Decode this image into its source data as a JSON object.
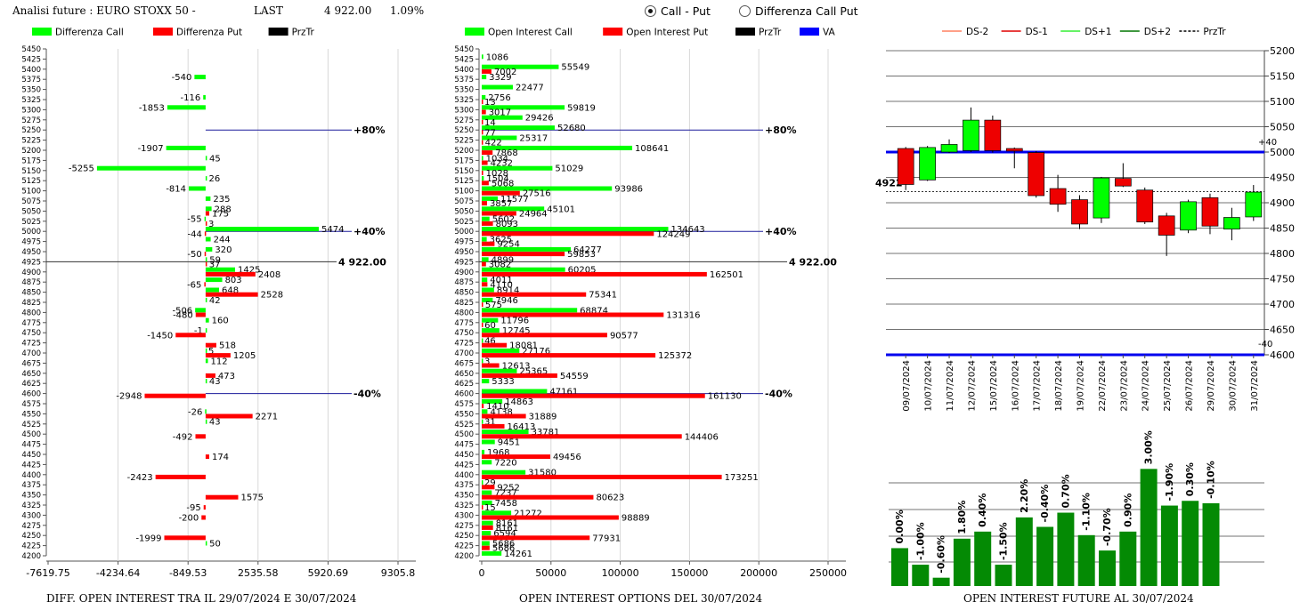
{
  "header": {
    "title": "Analisi future : EURO STOXX 50 -",
    "last_label": "LAST",
    "last_value": "4 922.00",
    "change": "1.09%",
    "radio_call_put": "Call - Put",
    "radio_diff": "Differenza Call Put",
    "radio_selected": "call_put"
  },
  "footers": {
    "left": "DIFF. OPEN INTEREST TRA IL 29/07/2024 E 30/07/2024",
    "middle": "OPEN INTEREST OPTIONS DEL 30/07/2024",
    "right": "OPEN INTEREST FUTURE AL 30/07/2024"
  },
  "colors": {
    "call": "#00ff00",
    "put": "#ff0000",
    "prztr": "#000000",
    "va": "#0000ff",
    "dark_green": "#008000",
    "mark_line": "#1c1c9c"
  },
  "strikes": [
    5450,
    5425,
    5400,
    5375,
    5350,
    5325,
    5300,
    5275,
    5250,
    5225,
    5200,
    5175,
    5150,
    5125,
    5100,
    5075,
    5050,
    5025,
    5000,
    4975,
    4950,
    4925,
    4900,
    4875,
    4850,
    4825,
    4800,
    4775,
    4750,
    4725,
    4700,
    4675,
    4650,
    4625,
    4600,
    4575,
    4550,
    4525,
    4500,
    4475,
    4450,
    4425,
    4400,
    4375,
    4350,
    4325,
    4300,
    4275,
    4250,
    4225,
    4200
  ],
  "chart_data": [
    {
      "type": "bar",
      "orientation": "horizontal",
      "legend": [
        "Differenza Call",
        "Differenza Put",
        "PrzTr"
      ],
      "x_ticks": [
        "-7619.75",
        "-4234.64",
        "-849.53",
        "2535.58",
        "5920.69",
        "9305.8"
      ],
      "xlim": [
        -7619.75,
        9305.8
      ],
      "price_line": {
        "strike": 4925,
        "label": "4 922.00"
      },
      "marker_lines": [
        {
          "strike": 5250,
          "label": "+80%"
        },
        {
          "strike": 5000,
          "label": "+40%"
        },
        {
          "strike": 4600,
          "label": "-40%"
        }
      ],
      "call_diff": {
        "5375": -540,
        "5325": -116,
        "5300": -1853,
        "5200": -1907,
        "5175": 45,
        "5150": -5255,
        "5125": 26,
        "5100": -814,
        "5075": 235,
        "5050": 288,
        "5025": -55,
        "5000": 5474,
        "4975": 244,
        "4950": 320,
        "4925": 59,
        "4900": 1425,
        "4875": 803,
        "4850": 648,
        "4825": 42,
        "4800": -506,
        "4775": 160,
        "4750": -1,
        "4700": 5,
        "4675": 112,
        "4625": 43,
        "4550": -26,
        "4525": 43,
        "4225": 50
      },
      "put_diff": {
        "5050": 175,
        "5025": 3,
        "5000": -44,
        "4950": -50,
        "4925": 37,
        "4900": 2408,
        "4875": -65,
        "4850": 2528,
        "4800": -480,
        "4750": -1450,
        "4725": 518,
        "4700": 1205,
        "4650": 473,
        "4600": -2948,
        "4550": 2271,
        "4500": -492,
        "4450": 174,
        "4400": -2423,
        "4350": 1575,
        "4325": -95,
        "4300": -200,
        "4250": -1999
      }
    },
    {
      "type": "bar",
      "orientation": "horizontal",
      "legend": [
        "Open Interest Call",
        "Open Interest Put",
        "PrzTr",
        "VA"
      ],
      "x_ticks": [
        "0",
        "50000",
        "100000",
        "150000",
        "200000",
        "250000"
      ],
      "xlim": [
        0,
        250000
      ],
      "price_line": {
        "strike": 4925,
        "label": "4 922.00"
      },
      "marker_lines": [
        {
          "strike": 5250,
          "label": "+80%"
        },
        {
          "strike": 5000,
          "label": "+40%"
        },
        {
          "strike": 4600,
          "label": "-40%"
        }
      ],
      "call_oi": {
        "5425": 1086,
        "5400": 55549,
        "5375": 3329,
        "5350": 22477,
        "5325": 2756,
        "5300": 59819,
        "5275": 29426,
        "5250": 52680,
        "5225": 25317,
        "5200": 108641,
        "5175": 1034,
        "5150": 51029,
        "5125": 1504,
        "5100": 93986,
        "5075": 11577,
        "5050": 45101,
        "5025": 5602,
        "5000": 134643,
        "4975": 3625,
        "4950": 64277,
        "4925": 4899,
        "4900": 60205,
        "4875": 4011,
        "4850": 8914,
        "4825": 7946,
        "4800": 68874,
        "4775": 11796,
        "4750": 12745,
        "4725": 46,
        "4700": 27176,
        "4675": 3,
        "4650": 25365,
        "4625": 5333,
        "4600": 47161,
        "4575": 14863,
        "4550": 4138,
        "4525": 31,
        "4500": 33781,
        "4475": 9451,
        "4450": 1968,
        "4425": 7220,
        "4400": 31580,
        "4375": 29,
        "4350": 7237,
        "4325": 7458,
        "4300": 21272,
        "4275": 8161,
        "4250": 6594,
        "4225": 5686,
        "4200": 14261
      },
      "put_oi": {
        "5400": 7002,
        "5325": 13,
        "5300": 3017,
        "5275": 14,
        "5250": 77,
        "5225": 422,
        "5200": 7868,
        "5175": 4232,
        "5150": 1028,
        "5125": 5068,
        "5100": 27516,
        "5075": 3857,
        "5050": 24964,
        "5025": 8093,
        "5000": 124249,
        "4975": 9254,
        "4950": 59853,
        "4925": 3082,
        "4900": 162501,
        "4875": 4110,
        "4850": 75341,
        "4825": 575,
        "4800": 131316,
        "4775": 60,
        "4750": 90577,
        "4725": 18081,
        "4700": 125372,
        "4675": 12613,
        "4650": 54559,
        "4600": 161130,
        "4575": 1410,
        "4550": 31889,
        "4525": 16413,
        "4500": 144406,
        "4450": 49456,
        "4400": 173251,
        "4375": 9252,
        "4350": 80623,
        "4325": 15,
        "4300": 98889,
        "4275": 8161,
        "4250": 77931,
        "4225": 5686
      }
    },
    {
      "type": "candlestick",
      "legend": [
        "DS-2",
        "DS-1",
        "DS+1",
        "DS+2",
        "PrzTr"
      ],
      "y_ticks": [
        5200,
        5150,
        5100,
        5050,
        5000,
        4950,
        4900,
        4850,
        4800,
        4750,
        4700,
        4650,
        4600
      ],
      "ylim": [
        4600,
        5200
      ],
      "band_lines": [
        {
          "value": 5000,
          "label": "+40"
        },
        {
          "value": 4600,
          "label": "-40"
        }
      ],
      "last_price": {
        "value": 4922,
        "label": "4922"
      },
      "candles": [
        {
          "date": "09/07/2024",
          "open": 5007,
          "close": 4936,
          "high": 5010,
          "low": 4925
        },
        {
          "date": "10/07/2024",
          "open": 4945,
          "close": 5009,
          "high": 5012,
          "low": 4943
        },
        {
          "date": "11/07/2024",
          "open": 5000,
          "close": 5015,
          "high": 5025,
          "low": 4998
        },
        {
          "date": "12/07/2024",
          "open": 5003,
          "close": 5063,
          "high": 5088,
          "low": 5000
        },
        {
          "date": "15/07/2024",
          "open": 5063,
          "close": 5003,
          "high": 5072,
          "low": 4999
        },
        {
          "date": "16/07/2024",
          "open": 5007,
          "close": 5002,
          "high": 5009,
          "low": 4968
        },
        {
          "date": "17/07/2024",
          "open": 4999,
          "close": 4914,
          "high": 5002,
          "low": 4910
        },
        {
          "date": "18/07/2024",
          "open": 4928,
          "close": 4897,
          "high": 4955,
          "low": 4882
        },
        {
          "date": "19/07/2024",
          "open": 4906,
          "close": 4858,
          "high": 4915,
          "low": 4848
        },
        {
          "date": "22/07/2024",
          "open": 4870,
          "close": 4949,
          "high": 4951,
          "low": 4860
        },
        {
          "date": "23/07/2024",
          "open": 4948,
          "close": 4933,
          "high": 4978,
          "low": 4931
        },
        {
          "date": "24/07/2024",
          "open": 4925,
          "close": 4862,
          "high": 4930,
          "low": 4858
        },
        {
          "date": "25/07/2024",
          "open": 4874,
          "close": 4836,
          "high": 4880,
          "low": 4795
        },
        {
          "date": "26/07/2024",
          "open": 4846,
          "close": 4902,
          "high": 4906,
          "low": 4840
        },
        {
          "date": "29/07/2024",
          "open": 4910,
          "close": 4854,
          "high": 4918,
          "low": 4838
        },
        {
          "date": "30/07/2024",
          "open": 4848,
          "close": 4871,
          "high": 4890,
          "low": 4826
        },
        {
          "date": "31/07/2024",
          "open": 4872,
          "close": 4921,
          "high": 4935,
          "low": 4864
        }
      ]
    },
    {
      "type": "bar",
      "orientation": "vertical",
      "labels": [
        "0.00%",
        "-1.00%",
        "-0.60%",
        "1.80%",
        "0.40%",
        "-1.50%",
        "2.20%",
        "-0.40%",
        "0.70%",
        "-1.10%",
        "-0.70%",
        "0.90%",
        "3.00%",
        "-1.90%",
        "0.30%",
        "-0.10%"
      ],
      "relative_heights": [
        0.32,
        0.18,
        0.07,
        0.4,
        0.46,
        0.18,
        0.58,
        0.5,
        0.62,
        0.43,
        0.3,
        0.46,
        0.99,
        0.68,
        0.72,
        0.7
      ]
    }
  ]
}
